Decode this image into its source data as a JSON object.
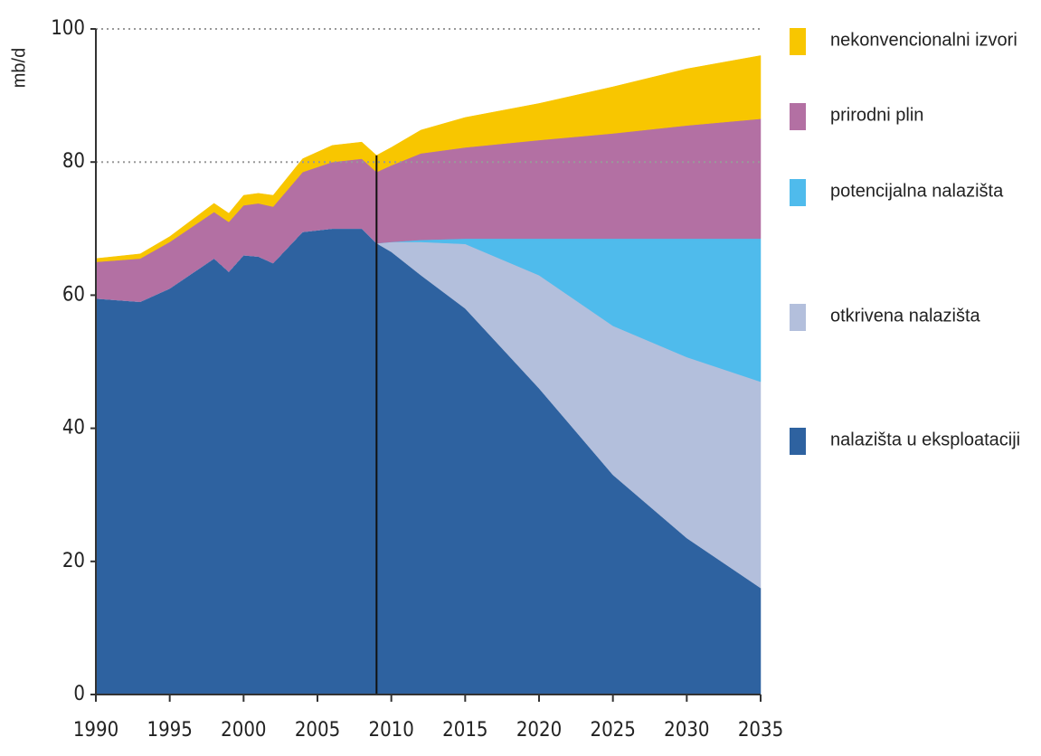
{
  "chart_data": {
    "type": "stacked_area",
    "y_label": "mb/d",
    "x": [
      1990,
      1993,
      1995,
      1998,
      1999,
      2000,
      2001,
      2002,
      2004,
      2006,
      2008,
      2009,
      2010,
      2012,
      2015,
      2020,
      2025,
      2030,
      2035
    ],
    "series": [
      {
        "name": "nalazišta u eksploataciji",
        "color": "#2e62a0",
        "values": [
          59.5,
          59,
          61,
          65.5,
          63.5,
          66,
          65.8,
          64.8,
          69.5,
          70,
          70,
          67.8,
          66.5,
          63,
          58,
          46,
          33,
          23.5,
          16
        ]
      },
      {
        "name": "otkrivena nalazišta",
        "color": "#b3bfdc",
        "values": [
          0,
          0,
          0,
          0,
          0,
          0,
          0,
          0,
          0,
          0,
          0,
          0,
          1.5,
          5,
          9.7,
          17,
          22.4,
          27.2,
          31
        ]
      },
      {
        "name": "potencijalna nalazišta",
        "color": "#4fbbec",
        "values": [
          0,
          0,
          0,
          0,
          0,
          0,
          0,
          0,
          0,
          0,
          0,
          0,
          0,
          0.3,
          0.8,
          5.5,
          13.1,
          17.8,
          21.5
        ]
      },
      {
        "name": "prirodni plin",
        "color": "#b370a3",
        "values": [
          5.5,
          6.5,
          7,
          7,
          7.5,
          7.5,
          8,
          8.5,
          9,
          10,
          10.5,
          10.7,
          11.5,
          13,
          13.7,
          14.8,
          15.8,
          17,
          18
        ]
      },
      {
        "name": "nekonvencionalni izvori",
        "color": "#f8c600",
        "values": [
          0.5,
          0.7,
          0.8,
          1.3,
          1.3,
          1.5,
          1.5,
          1.7,
          2,
          2.5,
          2.5,
          2.5,
          2.7,
          3.5,
          4.5,
          5.5,
          7,
          8.5,
          9.5
        ]
      }
    ],
    "xlim": [
      1990,
      2035
    ],
    "xticks": [
      1990,
      1995,
      2000,
      2005,
      2010,
      2015,
      2020,
      2025,
      2030,
      2035
    ],
    "ylim": [
      0,
      100
    ],
    "yticks": [
      0,
      20,
      40,
      60,
      80,
      100
    ],
    "grid_yticks": [
      80,
      100
    ],
    "divider_x": 2009,
    "legend": "right"
  }
}
